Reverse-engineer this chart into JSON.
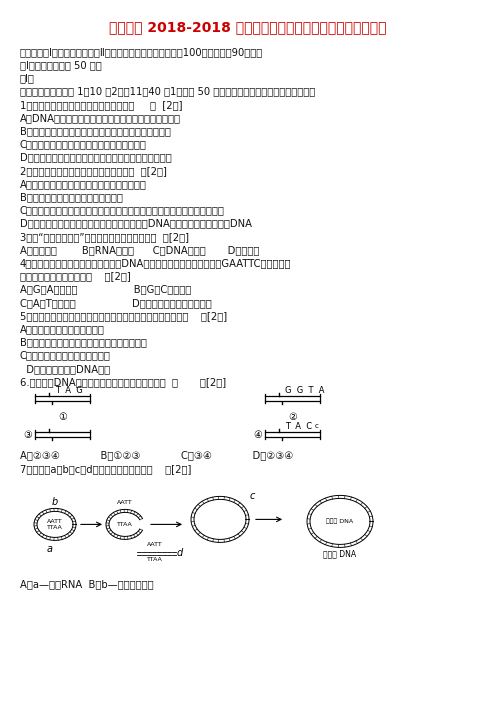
{
  "title": "马甲中学 2018-2018 学年高二下学期期中考试生物（理）试题",
  "title_color": "#CC0000",
  "bg_color": "#ffffff",
  "font_size_title": 10.0,
  "font_size_body": 7.2,
  "body_lines": [
    "本试卷分第Ⅰ卷（选择题）和第Ⅱ卷（非选择题）两部分，满分100分，答卷时90分钟，",
    "第Ⅰ卷（选择题，共 50 分）",
    "第Ⅰ卷",
    "一、选择题：（注意 1～10 项2分，11～40 项1分，共 50 分，每小题只有一个选项符合题意。）",
    "1．下列有关基因工程的叙述，正确的是（     ）  [2分]",
    "A．DNA连接酶的作用是将两个黏性末端的碱基连接起来",
    "B．目的基因导入受体细胞后，受体细胞即发生基因突变",
    "C．目的基因与运载体结合的过程发生在细胞外",
    "D．常使用的运载体有大肠杆菌、噌菌体和动植物病毒等",
    "2．下列关于基因工程的叙述，正确的是（  ）[2分]",
    "A．基因工程经常以抗菌素抗性基因为目的基因",
    "B．细菌质粒是基因工程常用的运载体",
    "C．为育成抗除草剂的作物新品种，导入抗除草剂基因时只能以受精卵为受体",
    "D．通常用一种限制性内切酶处理含目的基因的DNA，用另一种处理运载体DNA",
    "3．与“限制性内切酶”作用部位完全相同的酶是（  ）[2分]",
    "A．反转录酶        B．RNA聚合酶      C．DNA连接酶       D．解旋酶",
    "4．限制性内切酶的作用实际上就是把DNA上某些化学键切断，一种能对GAATTC专一识别的",
    "限制酶，打断的化学键是（    ）[2分]",
    "A．G与A之间的键                  B．G与C之间的键",
    "C．A与T之间的键                  D．磷酸与脱氧核糖之间的键",
    "5．除下列哪一项外，转基因工程的运载体必须具备的条件是（    ）[2分]",
    "A．能在宿主细胞中复制并保存",
    "B．具有多个限制酶切点，以便与外源基因连接",
    "C．具有标记基因，便于进行筛选",
    "  D．是环状形态的DNA分子",
    "6.下列四条DNA分子，彼此间具有粘性末端的一组  （       ）[2分]"
  ],
  "q6_answers": "A．②③④             B．①②③             C．③④             D．②③④",
  "q7_text": "7．下图中a、b、c、d代表的结构正确的是（    ）[2分]",
  "q7_answer": "A．a—质粒RNA  B．b—限制性外切酶"
}
